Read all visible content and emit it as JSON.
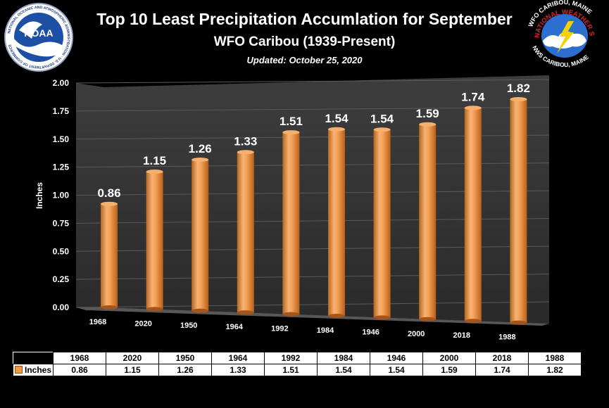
{
  "header": {
    "title": "Top 10 Least Precipitation Accumlation for September",
    "subtitle": "WFO Caribou (1939-Present)",
    "updated": "Updated:  October 25, 2020"
  },
  "logos": {
    "noaa_text": "NOAA",
    "noaa_ring_text": "NATIONAL OCEANIC AND ATMOSPHERIC ADMINISTRATION · U.S. DEPARTMENT OF COMMERCE",
    "nws_top_text": "WFO CARIBOU, MAINE",
    "nws_mid_text": "NATIONAL WEATHER SERVICE",
    "nws_bottom_text": "NWS CARIBOU, MAINE"
  },
  "chart_data": {
    "type": "bar",
    "title": "Top 10 Least Precipitation Accumlation for September",
    "subtitle": "WFO Caribou (1939-Present)",
    "categories": [
      "1968",
      "2020",
      "1950",
      "1964",
      "1992",
      "1984",
      "1946",
      "2000",
      "2018",
      "1988"
    ],
    "series": [
      {
        "name": "Inches",
        "values": [
          0.86,
          1.15,
          1.26,
          1.33,
          1.51,
          1.54,
          1.54,
          1.59,
          1.74,
          1.82
        ]
      }
    ],
    "ylabel": "Inches",
    "ylim": [
      0,
      2
    ],
    "yticks": [
      "0.00",
      "0.25",
      "0.50",
      "0.75",
      "1.00",
      "1.25",
      "1.50",
      "1.75",
      "2.00"
    ],
    "grid": true,
    "bar_color": "#f39a45",
    "data_table": true
  },
  "table": {
    "row_label": "Inches",
    "columns": [
      "1968",
      "2020",
      "1950",
      "1964",
      "1992",
      "1984",
      "1946",
      "2000",
      "2018",
      "1988"
    ],
    "values": [
      "0.86",
      "1.15",
      "1.26",
      "1.33",
      "1.51",
      "1.54",
      "1.54",
      "1.59",
      "1.74",
      "1.82"
    ]
  }
}
